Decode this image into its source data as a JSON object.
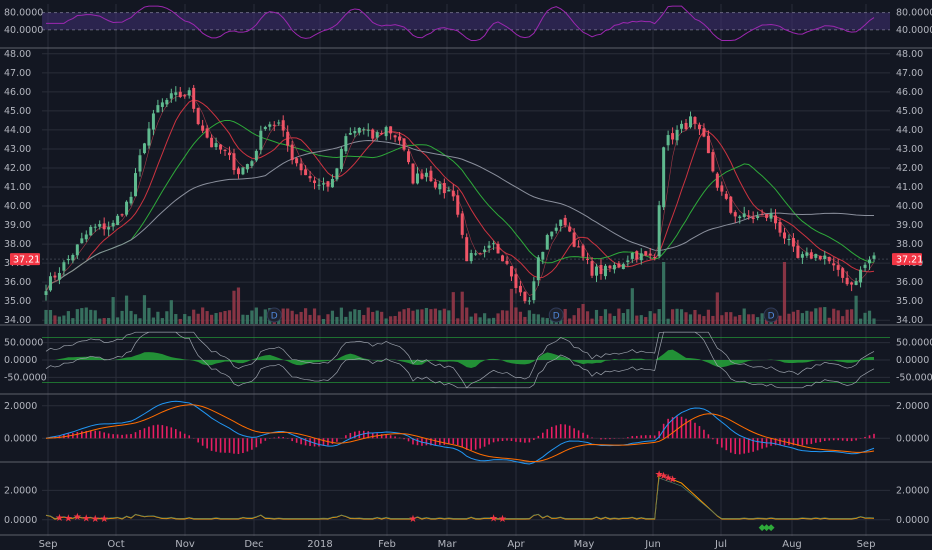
{
  "chart_data": {
    "type": "candlestick",
    "x_ticks": [
      "Sep",
      "Oct",
      "Nov",
      "Dec",
      "2018",
      "Feb",
      "Mar",
      "Apr",
      "May",
      "Jun",
      "Jul",
      "Aug",
      "Sep"
    ],
    "price_panel": {
      "ylim": [
        33.8,
        48.2
      ],
      "y_ticks": [
        "48.00",
        "47.00",
        "46.00",
        "45.00",
        "44.00",
        "43.00",
        "42.00",
        "41.00",
        "40.00",
        "39.00",
        "38.00",
        "37.00",
        "36.00",
        "35.00",
        "34.00"
      ],
      "last_price": "37.21",
      "close_anchors": [
        [
          0,
          35.8
        ],
        [
          5,
          37.2
        ],
        [
          10,
          38.8
        ],
        [
          15,
          39.0
        ],
        [
          19,
          40.5
        ],
        [
          22,
          43.5
        ],
        [
          25,
          45.2
        ],
        [
          28,
          45.7
        ],
        [
          32,
          45.9
        ],
        [
          34,
          44.5
        ],
        [
          37,
          43.2
        ],
        [
          40,
          42.8
        ],
        [
          43,
          41.8
        ],
        [
          46,
          42.4
        ],
        [
          49,
          44.4
        ],
        [
          52,
          44.3
        ],
        [
          55,
          42.6
        ],
        [
          58,
          41.7
        ],
        [
          61,
          41.1
        ],
        [
          64,
          41.2
        ],
        [
          67,
          43.6
        ],
        [
          70,
          44.1
        ],
        [
          73,
          43.6
        ],
        [
          76,
          44.1
        ],
        [
          79,
          43.5
        ],
        [
          82,
          41.4
        ],
        [
          85,
          41.8
        ],
        [
          88,
          40.9
        ],
        [
          91,
          40.7
        ],
        [
          94,
          37.3
        ],
        [
          97,
          37.3
        ],
        [
          100,
          37.9
        ],
        [
          103,
          37.1
        ],
        [
          106,
          35.4
        ],
        [
          108,
          34.9
        ],
        [
          110,
          37.2
        ],
        [
          113,
          38.8
        ],
        [
          116,
          39.2
        ],
        [
          119,
          37.6
        ],
        [
          122,
          36.6
        ],
        [
          125,
          36.6
        ],
        [
          128,
          36.9
        ],
        [
          131,
          37.5
        ],
        [
          134,
          37.3
        ],
        [
          136,
          37.3
        ],
        [
          138,
          43.3
        ],
        [
          141,
          43.9
        ],
        [
          144,
          44.5
        ],
        [
          147,
          43.4
        ],
        [
          150,
          41.1
        ],
        [
          153,
          39.7
        ],
        [
          156,
          39.4
        ],
        [
          159,
          39.4
        ],
        [
          162,
          39.5
        ],
        [
          165,
          38.4
        ],
        [
          168,
          37.2
        ],
        [
          171,
          37.4
        ],
        [
          174,
          37.4
        ],
        [
          177,
          36.4
        ],
        [
          180,
          35.9
        ],
        [
          183,
          36.9
        ],
        [
          185,
          37.4
        ]
      ],
      "indicator_marks": [
        "D",
        "D",
        "D"
      ]
    },
    "rsi_panel": {
      "ylim": [
        0,
        100
      ],
      "y_ticks": [
        "80.0000",
        "40.0000"
      ],
      "band": [
        40,
        80
      ]
    },
    "cci_panel": {
      "ylim": [
        -95,
        95
      ],
      "y_ticks": [
        "50.0000",
        "0.0000",
        "-50.0000"
      ]
    },
    "macd_panel": {
      "ylim": [
        -1.4,
        2.6
      ],
      "y_ticks": [
        "2.0000",
        "0.0000"
      ]
    },
    "bottom_panel": {
      "ylim": [
        -0.9,
        3.8
      ],
      "y_ticks": [
        "2.0000",
        "0.0000"
      ]
    },
    "colors": {
      "up": "#4a9a7d",
      "down": "#e05867",
      "rsi": "#9c27b0",
      "band": "#3f2f73",
      "cci_fill": "#26a63a",
      "macd_hist": "#e91e63",
      "ema_fast": "#2196f3",
      "ema_slow": "#ff6d00",
      "ma_red": "#cc3340",
      "ma_green": "#2eaa3a",
      "ma_gray": "#8a8f9c"
    }
  }
}
